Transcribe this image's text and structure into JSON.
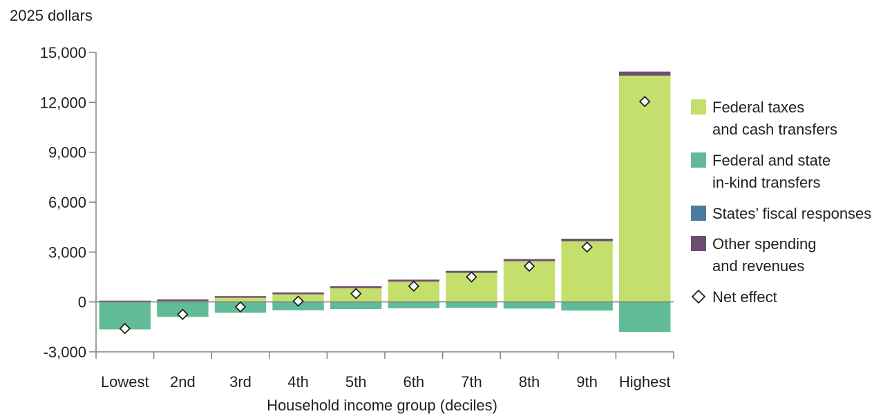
{
  "chart_data": {
    "type": "bar",
    "stacked": true,
    "ylabel": "2025 dollars",
    "xlabel": "Household income group (deciles)",
    "ylim": [
      -3000,
      15000
    ],
    "yticks": [
      -3000,
      0,
      3000,
      6000,
      9000,
      12000,
      15000
    ],
    "ytick_labels": [
      "-3,000",
      "0",
      "3,000",
      "6,000",
      "9,000",
      "12,000",
      "15,000"
    ],
    "categories": [
      "Lowest",
      "2nd",
      "3rd",
      "4th",
      "5th",
      "6th",
      "7th",
      "8th",
      "9th",
      "Highest"
    ],
    "series": [
      {
        "name": "Federal taxes and cash transfers",
        "legend_lines": [
          "Federal taxes",
          "and cash transfers"
        ],
        "color": "#c5df6d",
        "values": [
          0,
          50,
          250,
          460,
          830,
          1220,
          1750,
          2450,
          3650,
          13600
        ]
      },
      {
        "name": "Federal and state in-kind transfers",
        "legend_lines": [
          "Federal and state",
          "in-kind transfers"
        ],
        "color": "#5fbc96",
        "values": [
          -1650,
          -900,
          -650,
          -500,
          -430,
          -380,
          -350,
          -400,
          -520,
          -1800
        ]
      },
      {
        "name": "States' fiscal responses",
        "legend_lines": [
          "States’ fiscal responses"
        ],
        "color": "#4a7c9f",
        "values": [
          0,
          0,
          0,
          0,
          0,
          0,
          0,
          0,
          0,
          0
        ]
      },
      {
        "name": "Other spending and revenues",
        "legend_lines": [
          "Other spending",
          "and revenues"
        ],
        "color": "#6b4e71",
        "values": [
          80,
          100,
          100,
          110,
          110,
          120,
          120,
          130,
          150,
          250
        ]
      }
    ],
    "net_effect": {
      "name": "Net effect",
      "values": [
        -1600,
        -750,
        -300,
        50,
        500,
        950,
        1500,
        2150,
        3300,
        12050
      ]
    },
    "grid": false,
    "legend_position": "right"
  }
}
